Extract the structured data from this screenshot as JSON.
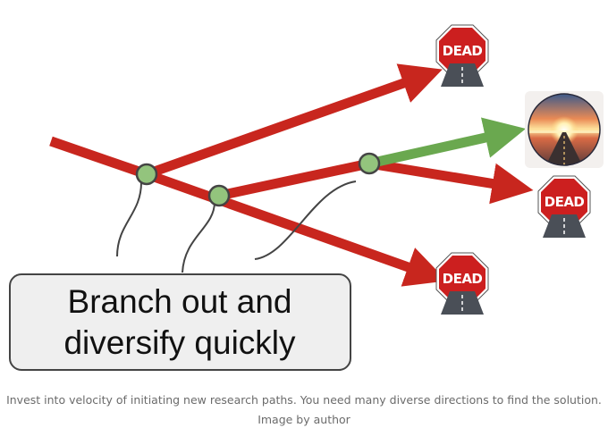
{
  "diagram": {
    "callout": {
      "line1": "Branch out and",
      "line2": "diversify quickly"
    },
    "dead_end_label": "DEAD",
    "colors": {
      "dead_path": "#c8261e",
      "success_path": "#6aa84f",
      "node_fill": "#93c47d",
      "node_stroke": "#444444",
      "callout_fill": "#efefef",
      "sign_red": "#cc1f1f"
    },
    "icons": {
      "dead_end": "dead-end-sign-icon",
      "success": "sunrise-road-icon"
    }
  },
  "caption": {
    "text": "Invest into velocity of initiating new research paths. You need many diverse directions to find the solution.",
    "credit": "Image by author"
  }
}
